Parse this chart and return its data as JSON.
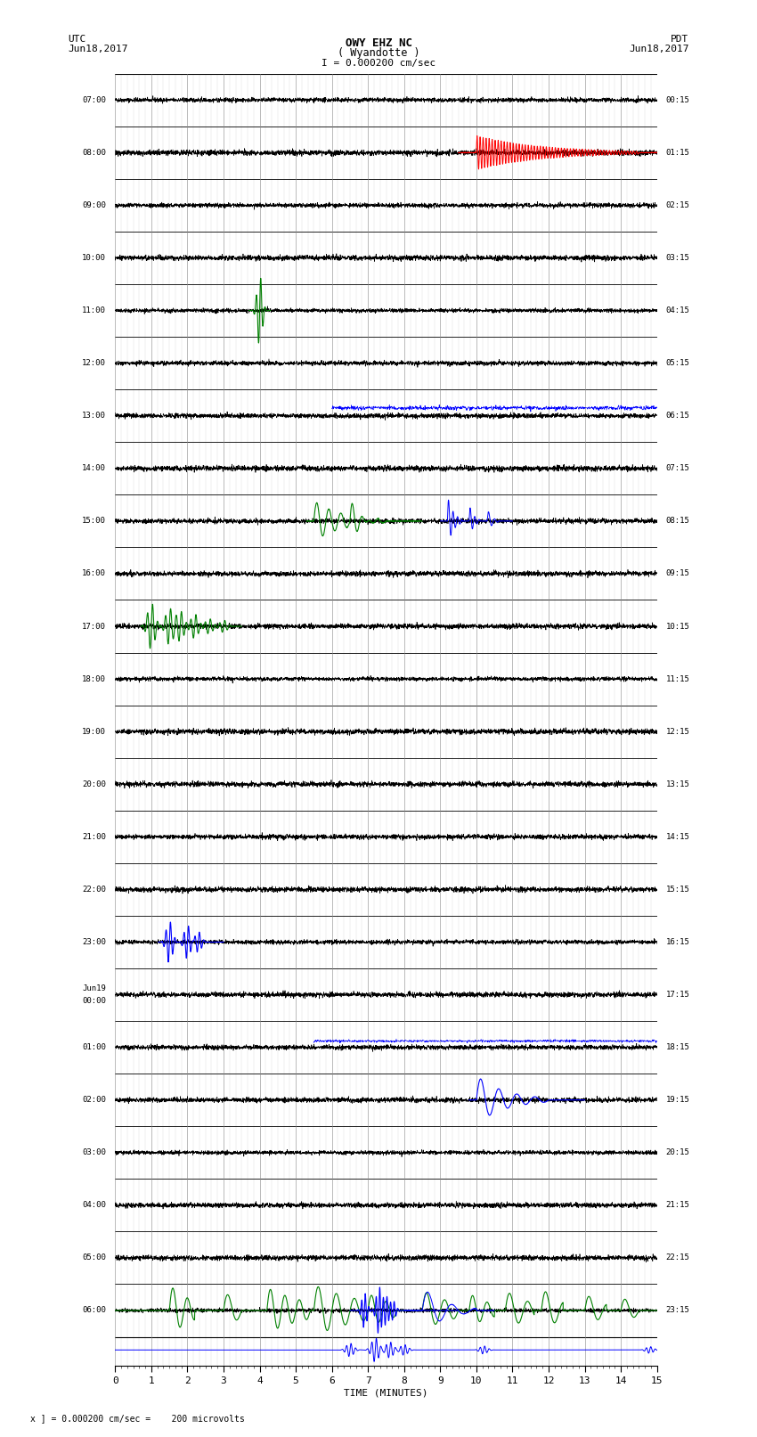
{
  "title_line1": "OWY EHZ NC",
  "title_line2": "( Wyandotte )",
  "scale_text": "I = 0.000200 cm/sec",
  "bottom_scale_text": "x ] = 0.000200 cm/sec =    200 microvolts",
  "xlabel": "TIME (MINUTES)",
  "utc_times": [
    "07:00",
    "08:00",
    "09:00",
    "10:00",
    "11:00",
    "12:00",
    "13:00",
    "14:00",
    "15:00",
    "16:00",
    "17:00",
    "18:00",
    "19:00",
    "20:00",
    "21:00",
    "22:00",
    "23:00",
    "Jun19\n00:00",
    "01:00",
    "02:00",
    "03:00",
    "04:00",
    "05:00",
    "06:00"
  ],
  "pdt_times": [
    "00:15",
    "01:15",
    "02:15",
    "03:15",
    "04:15",
    "05:15",
    "06:15",
    "07:15",
    "08:15",
    "09:15",
    "10:15",
    "11:15",
    "12:15",
    "13:15",
    "14:15",
    "15:15",
    "16:15",
    "17:15",
    "18:15",
    "19:15",
    "20:15",
    "21:15",
    "22:15",
    "23:15"
  ],
  "num_rows": 24,
  "bg_color": "#ffffff",
  "fig_width": 8.5,
  "fig_height": 16.13
}
